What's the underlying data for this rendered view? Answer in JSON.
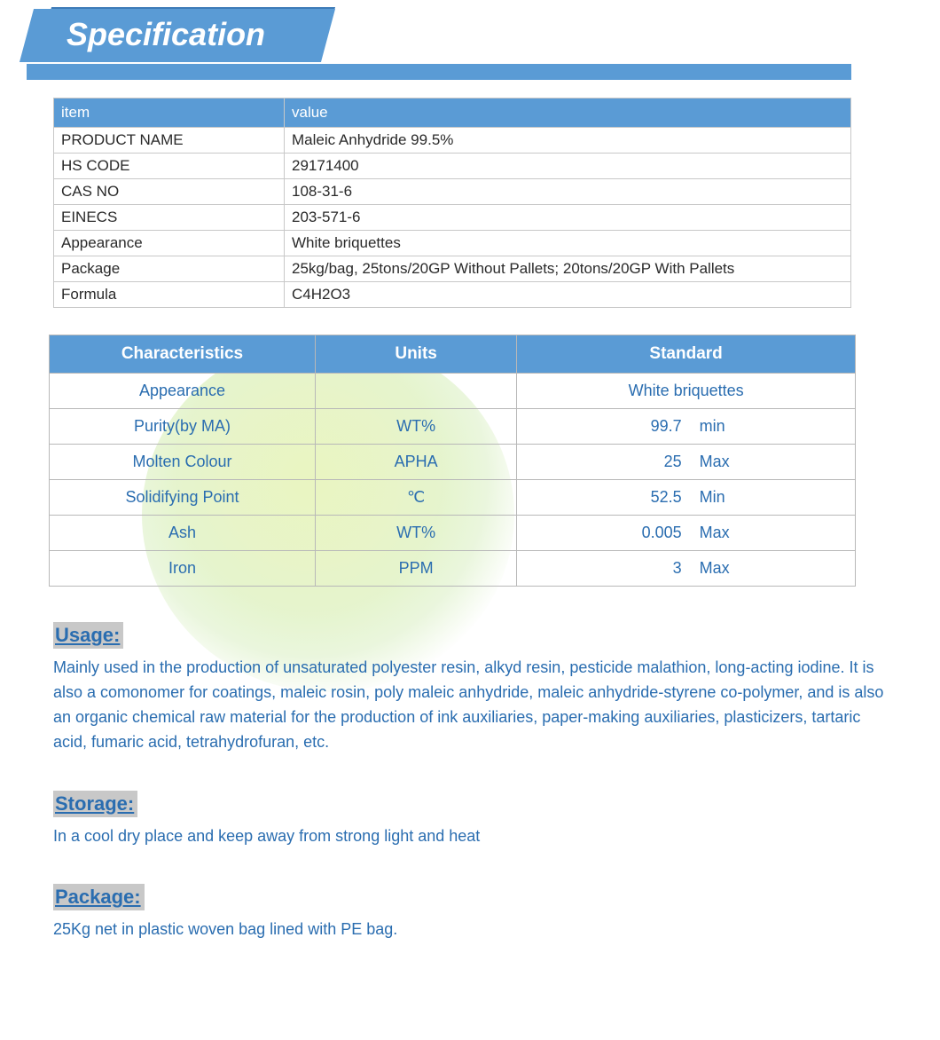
{
  "title": "Specification",
  "colors": {
    "primary": "#5a9bd5",
    "primary_dark": "#3d7bb8",
    "text_dark": "#2a2a2a",
    "text_blue": "#2a6db0",
    "heading_bg": "#c8c8c8",
    "border": "#c8c8c8",
    "border_spec": "#b8b8b8"
  },
  "basic_table": {
    "headers": [
      "item",
      "value"
    ],
    "rows": [
      {
        "item": "PRODUCT NAME",
        "value": "Maleic Anhydride 99.5%"
      },
      {
        "item": "HS CODE",
        "value": "29171400"
      },
      {
        "item": "CAS NO",
        "value": "108-31-6"
      },
      {
        "item": "EINECS",
        "value": "203-571-6"
      },
      {
        "item": "Appearance",
        "value": "White briquettes"
      },
      {
        "item": "Package",
        "value": "25kg/bag, 25tons/20GP Without Pallets; 20tons/20GP With Pallets"
      },
      {
        "item": "Formula",
        "value": "C4H2O3"
      }
    ]
  },
  "spec_table": {
    "headers": [
      "Characteristics",
      "Units",
      "Standard"
    ],
    "rows": [
      {
        "characteristic": "Appearance",
        "units": "",
        "std_value": "",
        "std_qual": "",
        "std_text": "White briquettes"
      },
      {
        "characteristic": "Purity(by MA)",
        "units": "WT%",
        "std_value": "99.7",
        "std_qual": "min",
        "std_text": ""
      },
      {
        "characteristic": "Molten Colour",
        "units": "APHA",
        "std_value": "25",
        "std_qual": "Max",
        "std_text": ""
      },
      {
        "characteristic": "Solidifying Point",
        "units": "℃",
        "std_value": "52.5",
        "std_qual": "Min",
        "std_text": ""
      },
      {
        "characteristic": "Ash",
        "units": "WT%",
        "std_value": "0.005",
        "std_qual": "Max",
        "std_text": ""
      },
      {
        "characteristic": "Iron",
        "units": "PPM",
        "std_value": "3",
        "std_qual": "Max",
        "std_text": ""
      }
    ]
  },
  "sections": {
    "usage": {
      "heading": "Usage:",
      "body": "Mainly used in the production of unsaturated polyester resin, alkyd resin, pesticide malathion, long-acting iodine. It is also a comonomer for coatings, maleic rosin, poly maleic anhydride, maleic anhydride-styrene co-polymer, and is also an organic chemical raw material for the production of ink auxiliaries, paper-making auxiliaries, plasticizers, tartaric acid, fumaric acid, tetrahydrofuran, etc."
    },
    "storage": {
      "heading": "Storage:",
      "body": "In a cool dry place and keep away from strong light and heat"
    },
    "package": {
      "heading": "Package:",
      "body": "25Kg net in plastic woven bag lined with PE bag."
    }
  }
}
